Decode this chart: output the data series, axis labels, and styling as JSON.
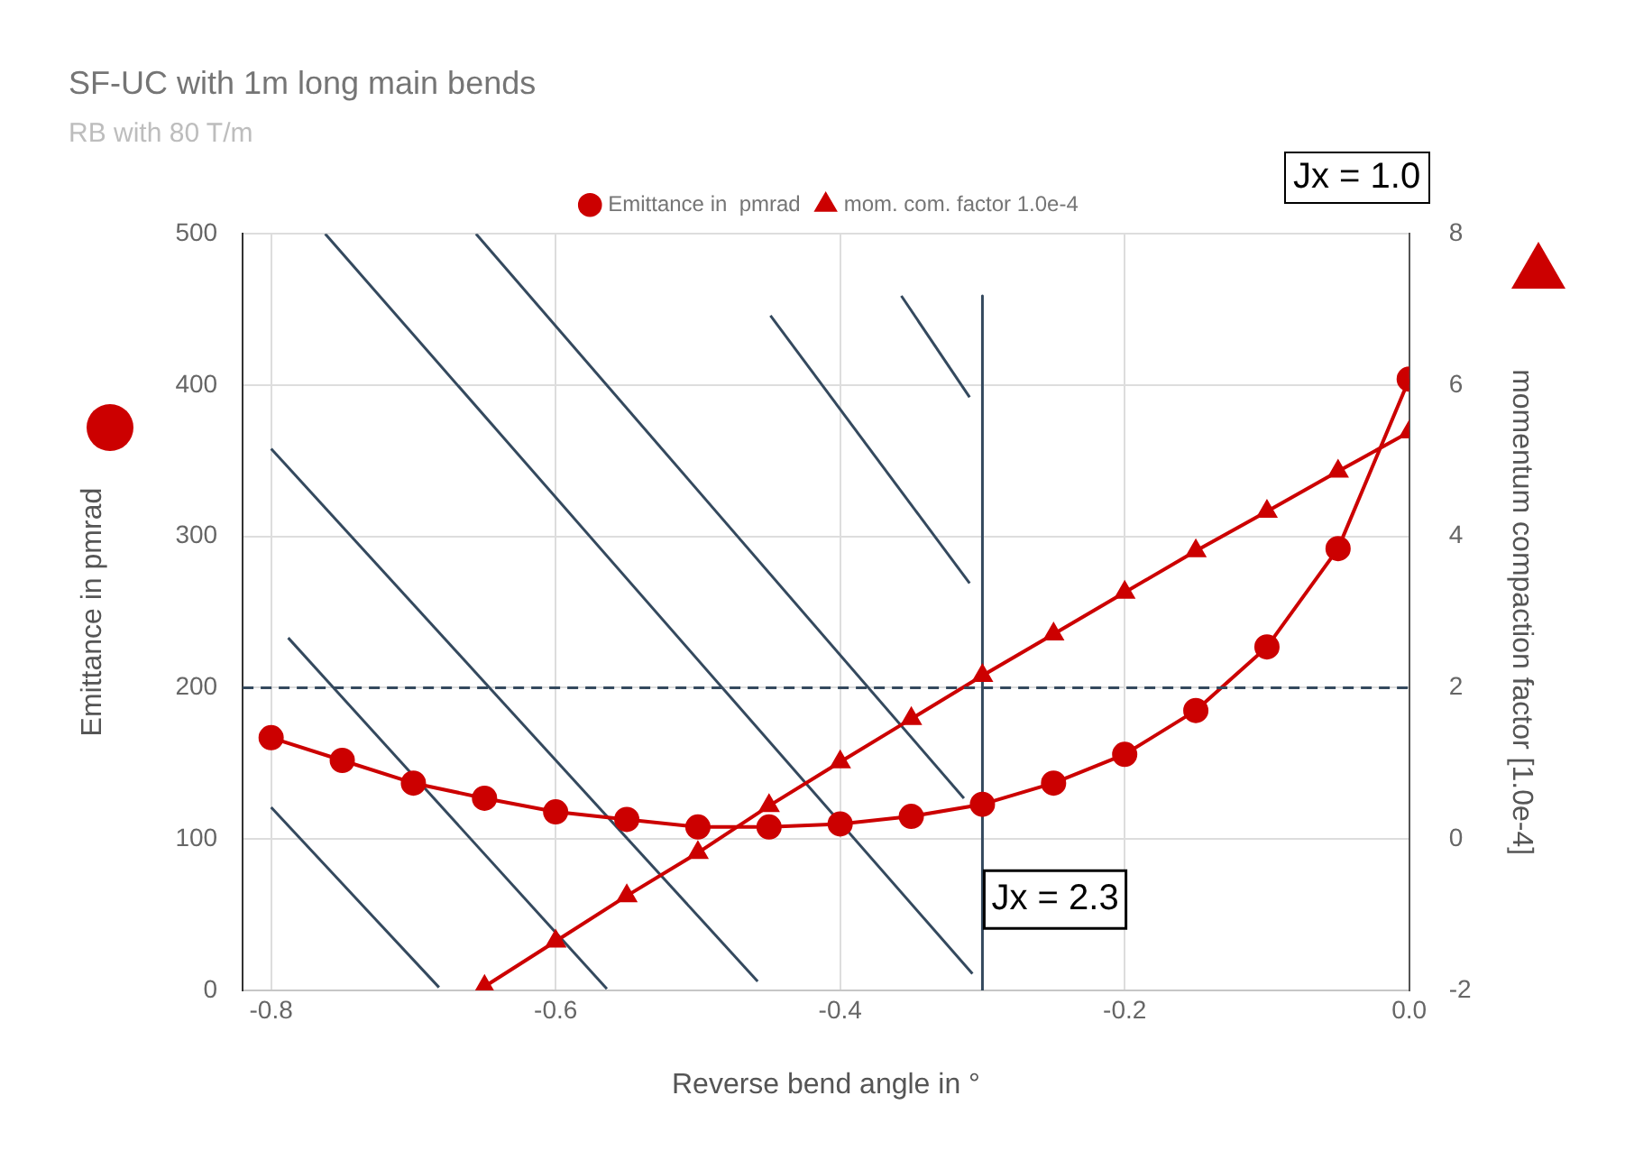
{
  "chart_data": {
    "type": "line",
    "title": "SF-UC with 1m long main bends",
    "subtitle": "RB with 80 T/m",
    "xlabel": "Reverse bend angle in °",
    "ylabel": "Emittance in pmrad",
    "y2label": "momentum compaction factor [1.0e-4]",
    "x": [
      -0.8,
      -0.75,
      -0.7,
      -0.65,
      -0.6,
      -0.55,
      -0.5,
      -0.45,
      -0.4,
      -0.35,
      -0.3,
      -0.25,
      -0.2,
      -0.15,
      -0.1,
      -0.05,
      0
    ],
    "series": [
      {
        "name": "Emittance in  pmrad",
        "color": "#cc0000",
        "marker": "circle",
        "values": [
          167,
          152,
          137,
          127,
          118,
          113,
          108,
          108,
          110,
          115,
          123,
          137,
          156,
          185,
          227,
          292,
          404
        ]
      },
      {
        "name": "mom. com. factor 1.0e-4",
        "color": "#cc0000",
        "marker": "triangle",
        "axis": "y2",
        "x": [
          -0.65,
          -0.6,
          -0.55,
          -0.5,
          -0.45,
          -0.4,
          -0.35,
          -0.3,
          -0.25,
          -0.2,
          -0.15,
          -0.1,
          -0.05,
          0
        ],
        "values": [
          -1.95,
          -1.35,
          -0.75,
          -0.18,
          0.44,
          1.02,
          1.59,
          2.16,
          2.71,
          3.26,
          3.81,
          4.33,
          4.86,
          5.38
        ]
      },
      {
        "color": "#34495e",
        "marker": "none",
        "x": [
          -0.8,
          -0.682
        ],
        "values": [
          121,
          2
        ]
      },
      {
        "color": "#34495e",
        "marker": "none",
        "x": [
          -0.788,
          -0.564
        ],
        "values": [
          233,
          1
        ]
      },
      {
        "color": "#34495e",
        "marker": "none",
        "x": [
          -0.8,
          -0.458
        ],
        "values": [
          358,
          6
        ]
      },
      {
        "color": "#34495e",
        "marker": "none",
        "x": [
          -0.762,
          -0.307
        ],
        "values": [
          500,
          11
        ]
      },
      {
        "color": "#34495e",
        "marker": "none",
        "x": [
          -0.656,
          -0.313
        ],
        "values": [
          500,
          127
        ]
      },
      {
        "color": "#34495e",
        "marker": "none",
        "x": [
          -0.449,
          -0.309
        ],
        "values": [
          446,
          269
        ]
      },
      {
        "color": "#34495e",
        "marker": "none",
        "x": [
          -0.357,
          -0.309
        ],
        "values": [
          459,
          392
        ]
      },
      {
        "color": "#34495e",
        "marker": "none",
        "x": [
          -0.3,
          -0.3
        ],
        "values": [
          459,
          0
        ]
      }
    ],
    "ref_lines": [
      {
        "axis": "y",
        "value": 200,
        "color": "#34495e",
        "line_style": "dashed"
      }
    ],
    "annotations": [
      "Jx = 1.0",
      {
        "text": "Jx = 2.3",
        "x": -0.3,
        "y": 60
      }
    ],
    "xlim": [
      -0.82,
      0.0
    ],
    "xticks": [
      -0.8,
      -0.6,
      -0.4,
      -0.2,
      {
        "value": 0,
        "label": "0.0"
      }
    ],
    "ylim": [
      0,
      500
    ],
    "yticks": [
      0,
      100,
      200,
      300,
      400,
      500
    ],
    "y2lim": [
      -2,
      8
    ],
    "y2ticks": [
      -2,
      0,
      2,
      4,
      6,
      8
    ],
    "grid": true,
    "legend": "top"
  }
}
